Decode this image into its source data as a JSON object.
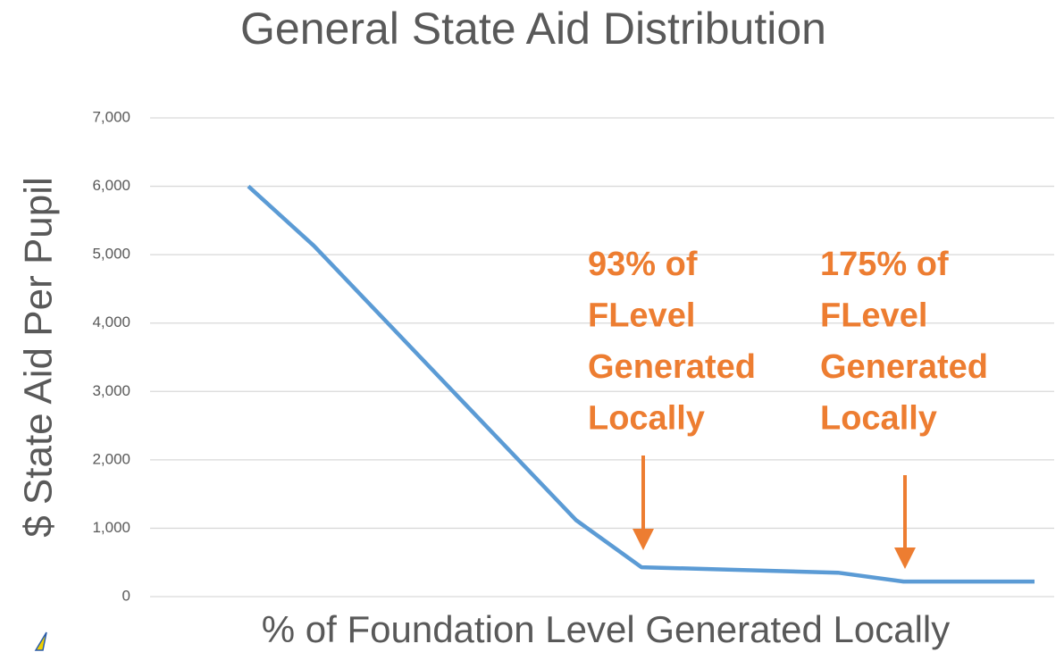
{
  "chart_data": {
    "type": "line",
    "title": "General State Aid Distribution",
    "y_label": "$ State Aid Per Pupil",
    "x_label": "% of Foundation Level Generated Locally",
    "x": [
      1,
      2,
      6,
      7,
      10,
      11,
      13
    ],
    "xlim": [
      -0.5,
      13.3
    ],
    "series": [
      {
        "color": "#5b9bd5",
        "values": [
          6000,
          5130,
          1120,
          430,
          350,
          220,
          220
        ]
      }
    ],
    "ylim": [
      0,
      7000
    ],
    "yticks": [
      0,
      {
        "value": 1000,
        "label": "1,000"
      },
      {
        "value": 2000,
        "label": "2,000"
      },
      {
        "value": 3000,
        "label": "3,000"
      },
      {
        "value": 4000,
        "label": "4,000"
      },
      {
        "value": 5000,
        "label": "5,000"
      },
      {
        "value": 6000,
        "label": "6,000"
      },
      {
        "value": 7000,
        "label": "7,000"
      }
    ],
    "grid": true,
    "annotations": [
      {
        "lines": [
          "93% of",
          "FLevel",
          "Generated",
          "Locally"
        ],
        "color": "#ed7d31"
      },
      {
        "lines": [
          "175% of",
          "FLevel",
          "Generated",
          "Locally"
        ],
        "color": "#ed7d31"
      }
    ]
  }
}
